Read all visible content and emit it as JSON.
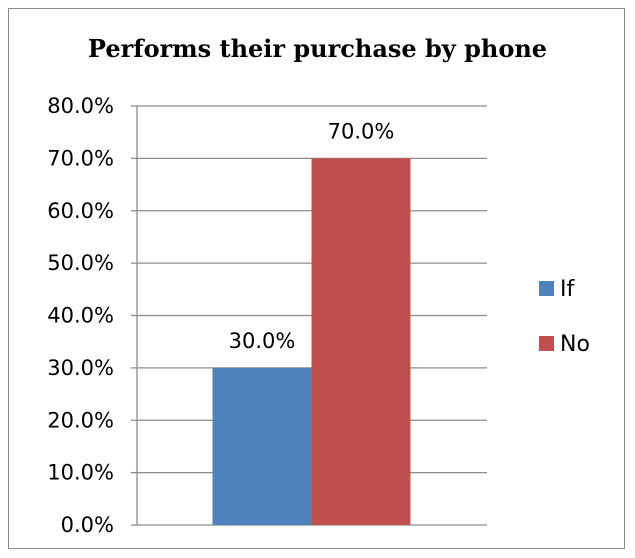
{
  "chart_data": {
    "type": "bar",
    "title": "Performs their purchase by phone",
    "xlabel": "",
    "ylabel": "",
    "categories": [
      ""
    ],
    "series": [
      {
        "name": "If",
        "values": [
          30.0
        ],
        "label": "30.0%",
        "color": "#4f81bd"
      },
      {
        "name": "No",
        "values": [
          70.0
        ],
        "label": "70.0%",
        "color": "#c0504d"
      }
    ],
    "ylim": [
      0,
      80
    ],
    "yticks": [
      0,
      10,
      20,
      30,
      40,
      50,
      60,
      70,
      80
    ],
    "ytick_labels": [
      "0.0%",
      "10.0%",
      "20.0%",
      "30.0%",
      "40.0%",
      "50.0%",
      "60.0%",
      "70.0%",
      "80.0%"
    ],
    "grid": true,
    "legend_position": "right"
  }
}
